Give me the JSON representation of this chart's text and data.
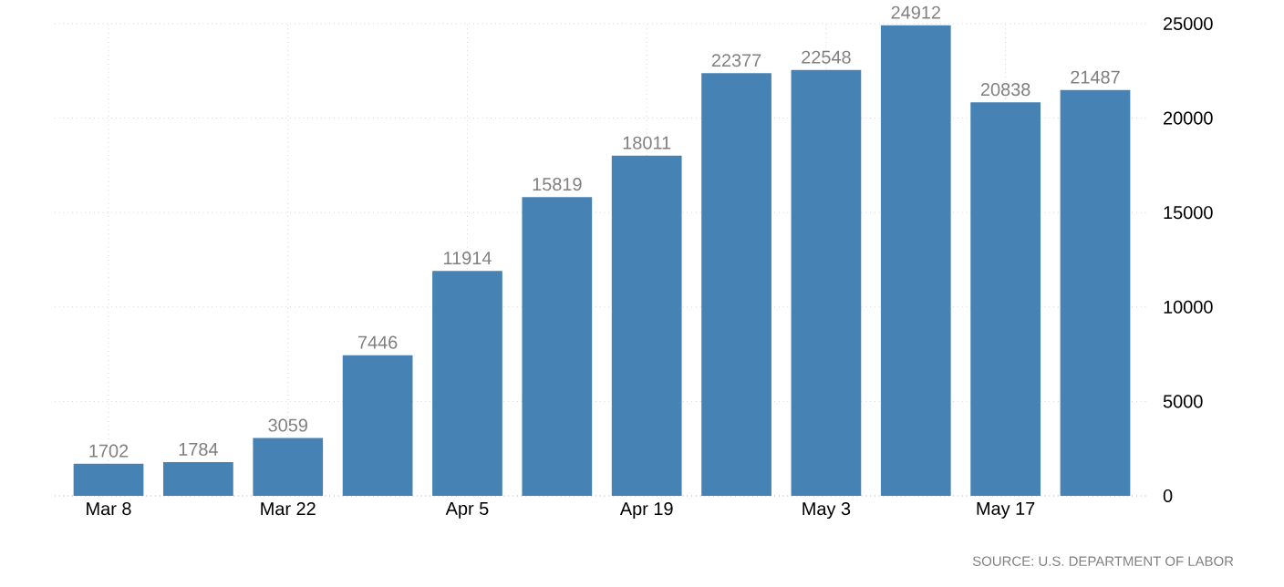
{
  "chart_data": {
    "type": "bar",
    "categories": [
      "Mar 8",
      null,
      "Mar 22",
      null,
      "Apr 5",
      null,
      "Apr 19",
      null,
      "May 3",
      null,
      "May 17",
      null
    ],
    "values": [
      1702,
      1784,
      3059,
      7446,
      11914,
      15819,
      18011,
      22377,
      22548,
      24912,
      20838,
      21487
    ],
    "color": "#4682b4",
    "ylim": [
      0,
      25000
    ],
    "yticks": [
      0,
      5000,
      10000,
      15000,
      20000,
      25000
    ],
    "grid": true,
    "data_labels": true,
    "annotations": [
      "SOURCE: U.S. DEPARTMENT OF LABOR"
    ]
  }
}
